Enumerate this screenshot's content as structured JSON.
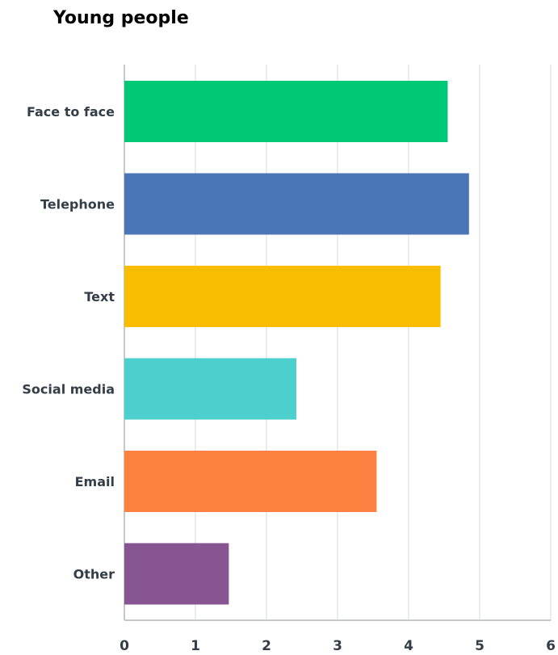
{
  "chart_data": {
    "type": "bar",
    "orientation": "horizontal",
    "title": "Young people",
    "xlabel": "",
    "ylabel": "",
    "categories": [
      "Face to face",
      "Telephone",
      "Text",
      "Social media",
      "Email",
      "Other"
    ],
    "values": [
      4.55,
      4.85,
      4.45,
      2.42,
      3.55,
      1.47
    ],
    "colors": [
      "#00c875",
      "#4a76b8",
      "#fbbd00",
      "#4ccfcd",
      "#fd8140",
      "#875592"
    ],
    "xlim": [
      0,
      6
    ],
    "xticks": [
      "0",
      "1",
      "2",
      "3",
      "4",
      "5",
      "6"
    ],
    "grid": true,
    "legend": "none"
  }
}
